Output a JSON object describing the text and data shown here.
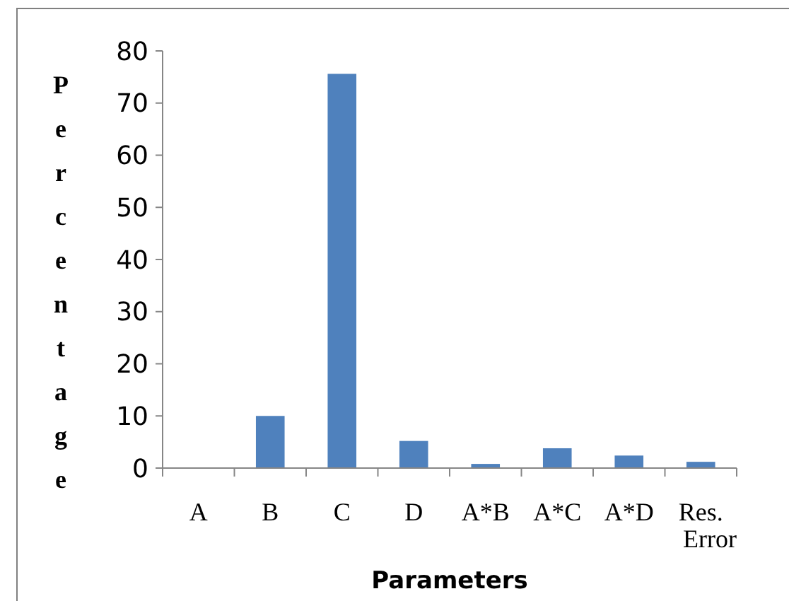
{
  "chart_data": {
    "type": "bar",
    "xlabel": "Parameters",
    "ylabel": "Percentage",
    "categories": [
      "A",
      "B",
      "C",
      "D",
      "A*B",
      "A*C",
      "A*D",
      "Res. Error"
    ],
    "values": [
      0.1,
      10,
      75.6,
      5.2,
      0.8,
      3.8,
      2.4,
      1.2
    ],
    "color": "#4f81bd",
    "ylim": [
      0,
      80
    ],
    "yticks": [
      0,
      10,
      20,
      30,
      40,
      50,
      60,
      70,
      80
    ]
  }
}
